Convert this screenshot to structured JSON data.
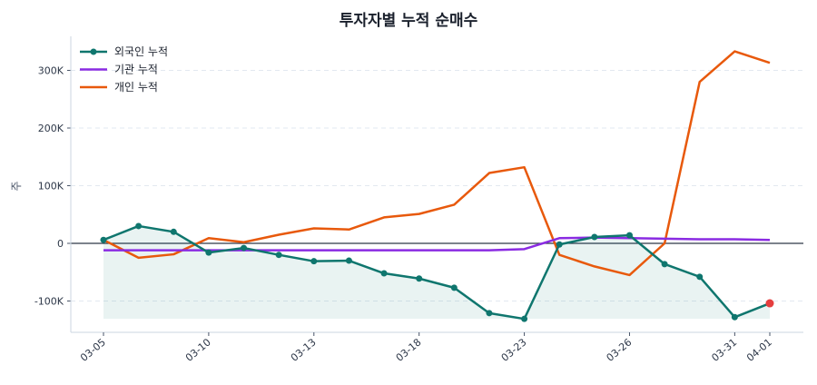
{
  "chart_data": {
    "type": "line",
    "title": "투자자별 누적 순매수",
    "ylabel": "주",
    "xlabel": "",
    "x": [
      "03-05",
      "03-06",
      "03-09",
      "03-10",
      "03-11",
      "03-12",
      "03-13",
      "03-16",
      "03-17",
      "03-18",
      "03-19",
      "03-20",
      "03-23",
      "03-24",
      "03-25",
      "03-26",
      "03-27",
      "03-30",
      "03-31",
      "04-01"
    ],
    "xticks": [
      "03-05",
      "03-10",
      "03-13",
      "03-18",
      "03-23",
      "03-26",
      "03-31",
      "04-01"
    ],
    "ylim": [
      -155000,
      355000
    ],
    "yticks": [
      -100000,
      0,
      100000,
      200000,
      300000
    ],
    "ytick_labels": [
      "-100K",
      "0",
      "100K",
      "200K",
      "300K"
    ],
    "grid": "horizontal dashed",
    "legend": "top-left",
    "series": [
      {
        "name": "외국인 누적",
        "color": "#0f766e",
        "markers": true,
        "fill": true,
        "last_point_color": "#e53e3e",
        "values": [
          6000,
          30000,
          20000,
          -16000,
          -8000,
          -20000,
          -31000,
          -30000,
          -52000,
          -61000,
          -77000,
          -121000,
          -131000,
          -2000,
          11000,
          14000,
          -36000,
          -58000,
          -128000,
          -104000
        ]
      },
      {
        "name": "기관 누적",
        "color": "#8a2be2",
        "values": [
          -12000,
          -12000,
          -12000,
          -12000,
          -12000,
          -12000,
          -12000,
          -12000,
          -12000,
          -12000,
          -12000,
          -12000,
          -10000,
          9000,
          10000,
          9000,
          8000,
          7000,
          7000,
          6000
        ]
      },
      {
        "name": "개인 누적",
        "color": "#e8590c",
        "values": [
          6000,
          -25000,
          -19000,
          9000,
          2000,
          15000,
          26000,
          24000,
          45000,
          51000,
          67000,
          122000,
          132000,
          -20000,
          -40000,
          -55000,
          0,
          280000,
          333000,
          313000
        ]
      }
    ]
  }
}
